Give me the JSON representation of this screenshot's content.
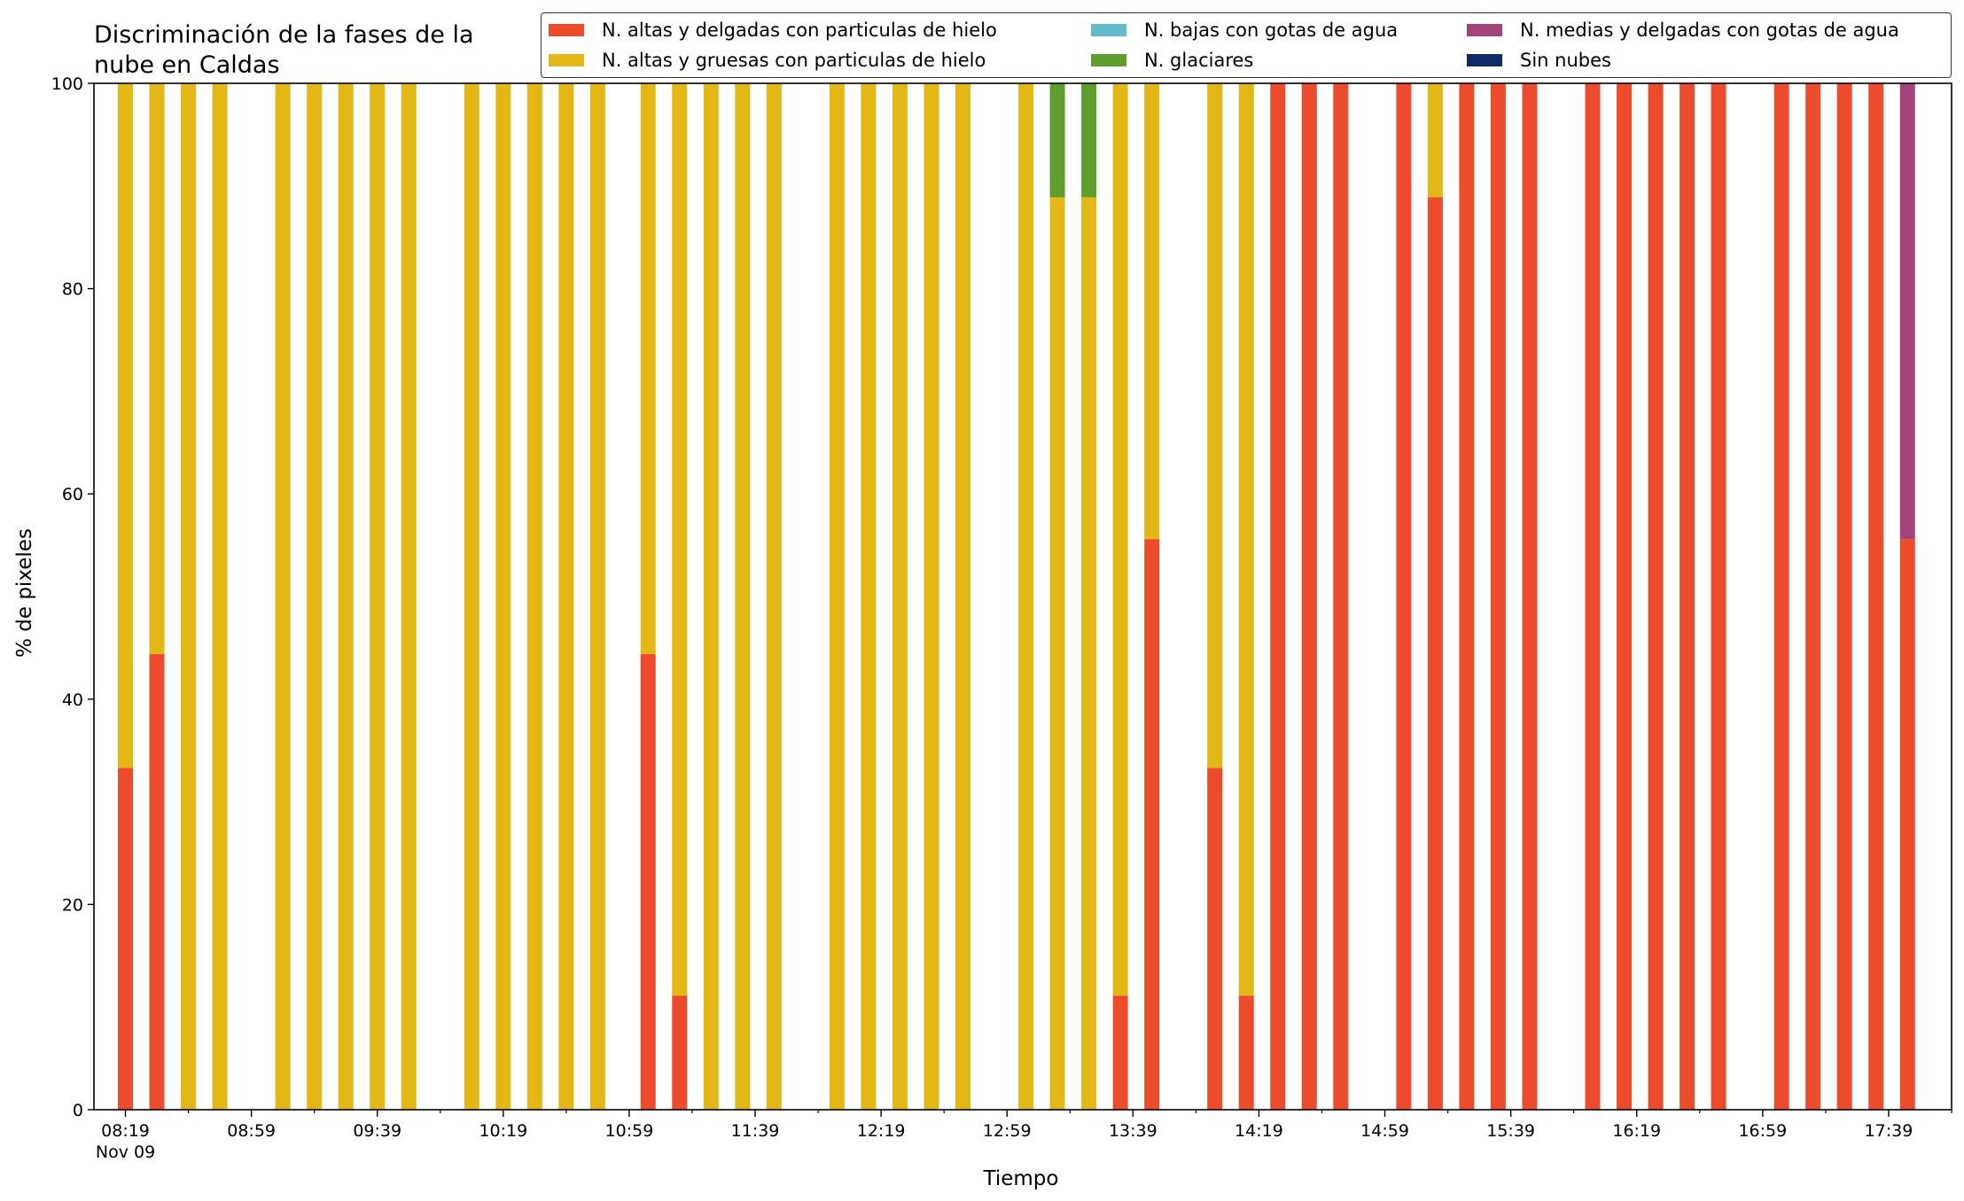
{
  "chart_data": {
    "type": "bar",
    "stacked": true,
    "title": [
      "Discriminación de la fases de la",
      "nube en Caldas"
    ],
    "xlabel": "Tiempo",
    "ylabel": "% de pixeles",
    "ylim": [
      0,
      100
    ],
    "yticks": [
      0,
      20,
      40,
      60,
      80,
      100
    ],
    "xlim": [
      "08:09",
      "17:59"
    ],
    "x_major_ticks": [
      "08:19",
      "08:59",
      "09:39",
      "10:19",
      "10:59",
      "11:39",
      "12:19",
      "12:59",
      "13:39",
      "14:19",
      "14:59",
      "15:39",
      "16:19",
      "16:59",
      "17:39"
    ],
    "x_minor_tick_interval_minutes": 20,
    "x_tick_sublabel": "Nov 09",
    "legend_position": "top-right",
    "legend_columns": 3,
    "grid": false,
    "times": [
      "08:19",
      "08:29",
      "08:39",
      "08:49",
      "09:09",
      "09:19",
      "09:29",
      "09:39",
      "09:49",
      "10:09",
      "10:19",
      "10:29",
      "10:39",
      "10:49",
      "11:05",
      "11:15",
      "11:25",
      "11:35",
      "11:45",
      "12:05",
      "12:15",
      "12:25",
      "12:35",
      "12:45",
      "13:05",
      "13:15",
      "13:25",
      "13:35",
      "13:45",
      "14:05",
      "14:15",
      "14:25",
      "14:35",
      "14:45",
      "15:05",
      "15:15",
      "15:25",
      "15:35",
      "15:45",
      "16:05",
      "16:15",
      "16:25",
      "16:35",
      "16:45",
      "17:05",
      "17:15",
      "17:25",
      "17:35",
      "17:45"
    ],
    "series": [
      {
        "name": "N. altas y delgadas con particulas de hielo",
        "color": "#EC4B2C",
        "values": [
          33.3,
          44.4,
          0,
          0,
          0,
          0,
          0,
          0,
          0,
          0,
          0,
          0,
          0,
          0,
          44.4,
          11.1,
          0,
          0,
          0,
          0,
          0,
          0,
          0,
          0,
          0,
          0,
          0,
          11.1,
          55.6,
          33.3,
          11.1,
          100,
          100,
          100,
          100,
          88.9,
          100,
          100,
          100,
          100,
          100,
          100,
          100,
          100,
          100,
          100,
          100,
          100,
          55.6
        ]
      },
      {
        "name": "N. altas y gruesas con particulas de hielo",
        "color": "#E3B715",
        "values": [
          66.7,
          55.6,
          100,
          100,
          100,
          100,
          100,
          100,
          100,
          100,
          100,
          100,
          100,
          100,
          55.6,
          88.9,
          100,
          100,
          100,
          100,
          100,
          100,
          100,
          100,
          100,
          88.9,
          88.9,
          88.9,
          44.4,
          66.7,
          88.9,
          0,
          0,
          0,
          0,
          11.1,
          0,
          0,
          0,
          0,
          0,
          0,
          0,
          0,
          0,
          0,
          0,
          0,
          0
        ]
      },
      {
        "name": "N. bajas con gotas de agua",
        "color": "#62BACA",
        "values": [
          0,
          0,
          0,
          0,
          0,
          0,
          0,
          0,
          0,
          0,
          0,
          0,
          0,
          0,
          0,
          0,
          0,
          0,
          0,
          0,
          0,
          0,
          0,
          0,
          0,
          0,
          0,
          0,
          0,
          0,
          0,
          0,
          0,
          0,
          0,
          0,
          0,
          0,
          0,
          0,
          0,
          0,
          0,
          0,
          0,
          0,
          0,
          0,
          0
        ]
      },
      {
        "name": "N. glaciares",
        "color": "#5E9E2D",
        "values": [
          0,
          0,
          0,
          0,
          0,
          0,
          0,
          0,
          0,
          0,
          0,
          0,
          0,
          0,
          0,
          0,
          0,
          0,
          0,
          0,
          0,
          0,
          0,
          0,
          0,
          11.1,
          11.1,
          0,
          0,
          0,
          0,
          0,
          0,
          0,
          0,
          0,
          0,
          0,
          0,
          0,
          0,
          0,
          0,
          0,
          0,
          0,
          0,
          0,
          0
        ]
      },
      {
        "name": "N. medias y delgadas con gotas de agua",
        "color": "#A2437A",
        "values": [
          0,
          0,
          0,
          0,
          0,
          0,
          0,
          0,
          0,
          0,
          0,
          0,
          0,
          0,
          0,
          0,
          0,
          0,
          0,
          0,
          0,
          0,
          0,
          0,
          0,
          0,
          0,
          0,
          0,
          0,
          0,
          0,
          0,
          0,
          0,
          0,
          0,
          0,
          0,
          0,
          0,
          0,
          0,
          0,
          0,
          0,
          0,
          0,
          44.4
        ]
      },
      {
        "name": "Sin nubes",
        "color": "#0F2B67",
        "values": [
          0,
          0,
          0,
          0,
          0,
          0,
          0,
          0,
          0,
          0,
          0,
          0,
          0,
          0,
          0,
          0,
          0,
          0,
          0,
          0,
          0,
          0,
          0,
          0,
          0,
          0,
          0,
          0,
          0,
          0,
          0,
          0,
          0,
          0,
          0,
          0,
          0,
          0,
          0,
          0,
          0,
          0,
          0,
          0,
          0,
          0,
          0,
          0,
          0
        ]
      }
    ]
  }
}
